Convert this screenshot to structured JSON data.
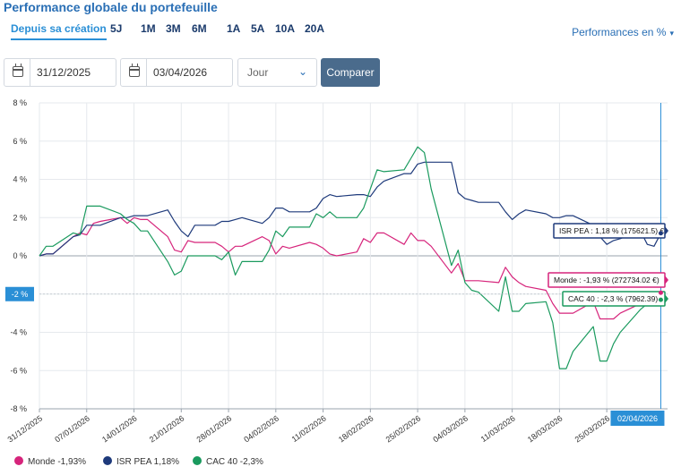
{
  "header": {
    "title": "Performance globale du portefeuille",
    "periods": [
      "Depuis sa création",
      "5J",
      "1M",
      "3M",
      "6M",
      "1A",
      "5A",
      "10A",
      "20A"
    ],
    "active_period": "Depuis sa création",
    "perf_mode": "Performances en %"
  },
  "controls": {
    "start_date": "31/12/2025",
    "end_date": "03/04/2026",
    "granularity": "Jour",
    "compare_label": "Comparer"
  },
  "chart_data": {
    "type": "line",
    "ylim": [
      -8,
      8
    ],
    "yticks": [
      "8 %",
      "6 %",
      "4 %",
      "2 %",
      "0 %",
      "-2 %",
      "-4 %",
      "-6 %",
      "-8 %"
    ],
    "xlim": [
      "2025-12-31",
      "2026-04-03"
    ],
    "xticks": [
      "31/12/2025",
      "07/01/2026",
      "14/01/2026",
      "21/01/2026",
      "28/01/2026",
      "04/02/2026",
      "11/02/2026",
      "18/02/2026",
      "25/02/2026",
      "04/03/2026",
      "11/03/2026",
      "18/03/2026",
      "25/03/2026"
    ],
    "crosshair": {
      "date_label": "02/04/2026",
      "y_label": "-2 %"
    },
    "series": [
      {
        "name": "Monde",
        "legend": "Monde -1,93%",
        "tooltip": "Monde : -1,93 % (272734.02 €)",
        "color": "#d6247b",
        "points": [
          [
            "2025-12-31",
            0
          ],
          [
            "2026-01-01",
            0.1
          ],
          [
            "2026-01-02",
            0.1
          ],
          [
            "2026-01-05",
            1.0
          ],
          [
            "2026-01-06",
            1.2
          ],
          [
            "2026-01-07",
            1.1
          ],
          [
            "2026-01-08",
            1.7
          ],
          [
            "2026-01-09",
            1.8
          ],
          [
            "2026-01-12",
            2.0
          ],
          [
            "2026-01-13",
            1.7
          ],
          [
            "2026-01-14",
            2.0
          ],
          [
            "2026-01-15",
            1.9
          ],
          [
            "2026-01-16",
            1.9
          ],
          [
            "2026-01-19",
            1.0
          ],
          [
            "2026-01-20",
            0.3
          ],
          [
            "2026-01-21",
            0.2
          ],
          [
            "2026-01-22",
            0.8
          ],
          [
            "2026-01-23",
            0.7
          ],
          [
            "2026-01-26",
            0.7
          ],
          [
            "2026-01-27",
            0.5
          ],
          [
            "2026-01-28",
            0.2
          ],
          [
            "2026-01-29",
            0.5
          ],
          [
            "2026-01-30",
            0.5
          ],
          [
            "2026-02-02",
            1.0
          ],
          [
            "2026-02-03",
            0.8
          ],
          [
            "2026-02-04",
            0.1
          ],
          [
            "2026-02-05",
            0.5
          ],
          [
            "2026-02-06",
            0.4
          ],
          [
            "2026-02-09",
            0.7
          ],
          [
            "2026-02-10",
            0.6
          ],
          [
            "2026-02-11",
            0.4
          ],
          [
            "2026-02-12",
            0.1
          ],
          [
            "2026-02-13",
            0.0
          ],
          [
            "2026-02-16",
            0.2
          ],
          [
            "2026-02-17",
            0.9
          ],
          [
            "2026-02-18",
            0.7
          ],
          [
            "2026-02-19",
            1.2
          ],
          [
            "2026-02-20",
            1.2
          ],
          [
            "2026-02-23",
            0.6
          ],
          [
            "2026-02-24",
            1.2
          ],
          [
            "2026-02-25",
            0.8
          ],
          [
            "2026-02-26",
            0.8
          ],
          [
            "2026-02-27",
            0.5
          ],
          [
            "2026-03-02",
            -0.9
          ],
          [
            "2026-03-03",
            -0.4
          ],
          [
            "2026-03-04",
            -1.3
          ],
          [
            "2026-03-05",
            -1.3
          ],
          [
            "2026-03-06",
            -1.3
          ],
          [
            "2026-03-09",
            -1.4
          ],
          [
            "2026-03-10",
            -0.6
          ],
          [
            "2026-03-11",
            -1.1
          ],
          [
            "2026-03-12",
            -1.4
          ],
          [
            "2026-03-13",
            -1.6
          ],
          [
            "2026-03-16",
            -1.8
          ],
          [
            "2026-03-17",
            -2.5
          ],
          [
            "2026-03-18",
            -3.0
          ],
          [
            "2026-03-19",
            -3.0
          ],
          [
            "2026-03-20",
            -3.0
          ],
          [
            "2026-03-23",
            -2.4
          ],
          [
            "2026-03-24",
            -3.3
          ],
          [
            "2026-03-25",
            -3.3
          ],
          [
            "2026-03-26",
            -3.3
          ],
          [
            "2026-03-27",
            -3.0
          ],
          [
            "2026-03-30",
            -2.5
          ],
          [
            "2026-03-31",
            -2.4
          ],
          [
            "2026-04-01",
            -2.1
          ],
          [
            "2026-04-02",
            -1.93
          ]
        ]
      },
      {
        "name": "ISR PEA",
        "legend": "ISR PEA 1,18%",
        "tooltip": "ISR PEA : 1,18 % (175621.5) €",
        "color": "#1e3a7b",
        "points": [
          [
            "2025-12-31",
            0
          ],
          [
            "2026-01-01",
            0.1
          ],
          [
            "2026-01-02",
            0.1
          ],
          [
            "2026-01-05",
            1.0
          ],
          [
            "2026-01-06",
            1.1
          ],
          [
            "2026-01-07",
            1.6
          ],
          [
            "2026-01-08",
            1.6
          ],
          [
            "2026-01-09",
            1.6
          ],
          [
            "2026-01-12",
            2.0
          ],
          [
            "2026-01-13",
            2.0
          ],
          [
            "2026-01-14",
            2.1
          ],
          [
            "2026-01-15",
            2.1
          ],
          [
            "2026-01-16",
            2.1
          ],
          [
            "2026-01-19",
            2.4
          ],
          [
            "2026-01-20",
            1.8
          ],
          [
            "2026-01-21",
            1.3
          ],
          [
            "2026-01-22",
            1.0
          ],
          [
            "2026-01-23",
            1.6
          ],
          [
            "2026-01-26",
            1.6
          ],
          [
            "2026-01-27",
            1.8
          ],
          [
            "2026-01-28",
            1.8
          ],
          [
            "2026-01-29",
            1.9
          ],
          [
            "2026-01-30",
            2.0
          ],
          [
            "2026-02-02",
            1.7
          ],
          [
            "2026-02-03",
            2.0
          ],
          [
            "2026-02-04",
            2.5
          ],
          [
            "2026-02-05",
            2.5
          ],
          [
            "2026-02-06",
            2.3
          ],
          [
            "2026-02-09",
            2.3
          ],
          [
            "2026-02-10",
            2.5
          ],
          [
            "2026-02-11",
            3.0
          ],
          [
            "2026-02-12",
            3.2
          ],
          [
            "2026-02-13",
            3.1
          ],
          [
            "2026-02-16",
            3.2
          ],
          [
            "2026-02-17",
            3.2
          ],
          [
            "2026-02-18",
            3.1
          ],
          [
            "2026-02-19",
            3.6
          ],
          [
            "2026-02-20",
            3.9
          ],
          [
            "2026-02-23",
            4.3
          ],
          [
            "2026-02-24",
            4.3
          ],
          [
            "2026-02-25",
            4.8
          ],
          [
            "2026-02-26",
            4.9
          ],
          [
            "2026-02-27",
            4.9
          ],
          [
            "2026-03-02",
            4.9
          ],
          [
            "2026-03-03",
            3.3
          ],
          [
            "2026-03-04",
            3.0
          ],
          [
            "2026-03-05",
            2.9
          ],
          [
            "2026-03-06",
            2.8
          ],
          [
            "2026-03-09",
            2.8
          ],
          [
            "2026-03-10",
            2.3
          ],
          [
            "2026-03-11",
            1.9
          ],
          [
            "2026-03-12",
            2.2
          ],
          [
            "2026-03-13",
            2.4
          ],
          [
            "2026-03-16",
            2.2
          ],
          [
            "2026-03-17",
            2.0
          ],
          [
            "2026-03-18",
            2.0
          ],
          [
            "2026-03-19",
            2.1
          ],
          [
            "2026-03-20",
            2.1
          ],
          [
            "2026-03-23",
            1.6
          ],
          [
            "2026-03-24",
            1.0
          ],
          [
            "2026-03-25",
            0.6
          ],
          [
            "2026-03-26",
            0.8
          ],
          [
            "2026-03-27",
            0.9
          ],
          [
            "2026-03-30",
            1.3
          ],
          [
            "2026-03-31",
            0.6
          ],
          [
            "2026-04-01",
            0.5
          ],
          [
            "2026-04-02",
            1.18
          ]
        ]
      },
      {
        "name": "CAC 40",
        "legend": "CAC 40 -2,3%",
        "tooltip": "CAC 40 : -2,3 % (7962.39)",
        "color": "#1a9a5e",
        "points": [
          [
            "2025-12-31",
            0
          ],
          [
            "2026-01-01",
            0.5
          ],
          [
            "2026-01-02",
            0.5
          ],
          [
            "2026-01-05",
            1.2
          ],
          [
            "2026-01-06",
            1.1
          ],
          [
            "2026-01-07",
            2.6
          ],
          [
            "2026-01-08",
            2.6
          ],
          [
            "2026-01-09",
            2.6
          ],
          [
            "2026-01-12",
            2.2
          ],
          [
            "2026-01-13",
            1.9
          ],
          [
            "2026-01-14",
            1.7
          ],
          [
            "2026-01-15",
            1.3
          ],
          [
            "2026-01-16",
            1.3
          ],
          [
            "2026-01-19",
            -0.3
          ],
          [
            "2026-01-20",
            -1.0
          ],
          [
            "2026-01-21",
            -0.8
          ],
          [
            "2026-01-22",
            0.0
          ],
          [
            "2026-01-23",
            0.0
          ],
          [
            "2026-01-26",
            0.0
          ],
          [
            "2026-01-27",
            -0.2
          ],
          [
            "2026-01-28",
            0.2
          ],
          [
            "2026-01-29",
            -1.0
          ],
          [
            "2026-01-30",
            -0.3
          ],
          [
            "2026-02-02",
            -0.3
          ],
          [
            "2026-02-03",
            0.3
          ],
          [
            "2026-02-04",
            1.3
          ],
          [
            "2026-02-05",
            1.0
          ],
          [
            "2026-02-06",
            1.5
          ],
          [
            "2026-02-09",
            1.5
          ],
          [
            "2026-02-10",
            2.2
          ],
          [
            "2026-02-11",
            2.0
          ],
          [
            "2026-02-12",
            2.3
          ],
          [
            "2026-02-13",
            2.0
          ],
          [
            "2026-02-16",
            2.0
          ],
          [
            "2026-02-17",
            2.5
          ],
          [
            "2026-02-18",
            3.5
          ],
          [
            "2026-02-19",
            4.5
          ],
          [
            "2026-02-20",
            4.4
          ],
          [
            "2026-02-23",
            4.5
          ],
          [
            "2026-02-24",
            5.1
          ],
          [
            "2026-02-25",
            5.7
          ],
          [
            "2026-02-26",
            5.4
          ],
          [
            "2026-02-27",
            3.5
          ],
          [
            "2026-03-02",
            -0.5
          ],
          [
            "2026-03-03",
            0.3
          ],
          [
            "2026-03-04",
            -1.4
          ],
          [
            "2026-03-05",
            -1.8
          ],
          [
            "2026-03-06",
            -1.9
          ],
          [
            "2026-03-09",
            -2.9
          ],
          [
            "2026-03-10",
            -1.1
          ],
          [
            "2026-03-11",
            -2.9
          ],
          [
            "2026-03-12",
            -2.9
          ],
          [
            "2026-03-13",
            -2.5
          ],
          [
            "2026-03-16",
            -2.4
          ],
          [
            "2026-03-17",
            -3.5
          ],
          [
            "2026-03-18",
            -5.9
          ],
          [
            "2026-03-19",
            -5.9
          ],
          [
            "2026-03-20",
            -5.0
          ],
          [
            "2026-03-23",
            -3.7
          ],
          [
            "2026-03-24",
            -5.5
          ],
          [
            "2026-03-25",
            -5.5
          ],
          [
            "2026-03-26",
            -4.6
          ],
          [
            "2026-03-27",
            -4.0
          ],
          [
            "2026-03-30",
            -2.8
          ],
          [
            "2026-03-31",
            -2.5
          ],
          [
            "2026-04-01",
            -2.4
          ],
          [
            "2026-04-02",
            -2.3
          ]
        ]
      }
    ]
  }
}
